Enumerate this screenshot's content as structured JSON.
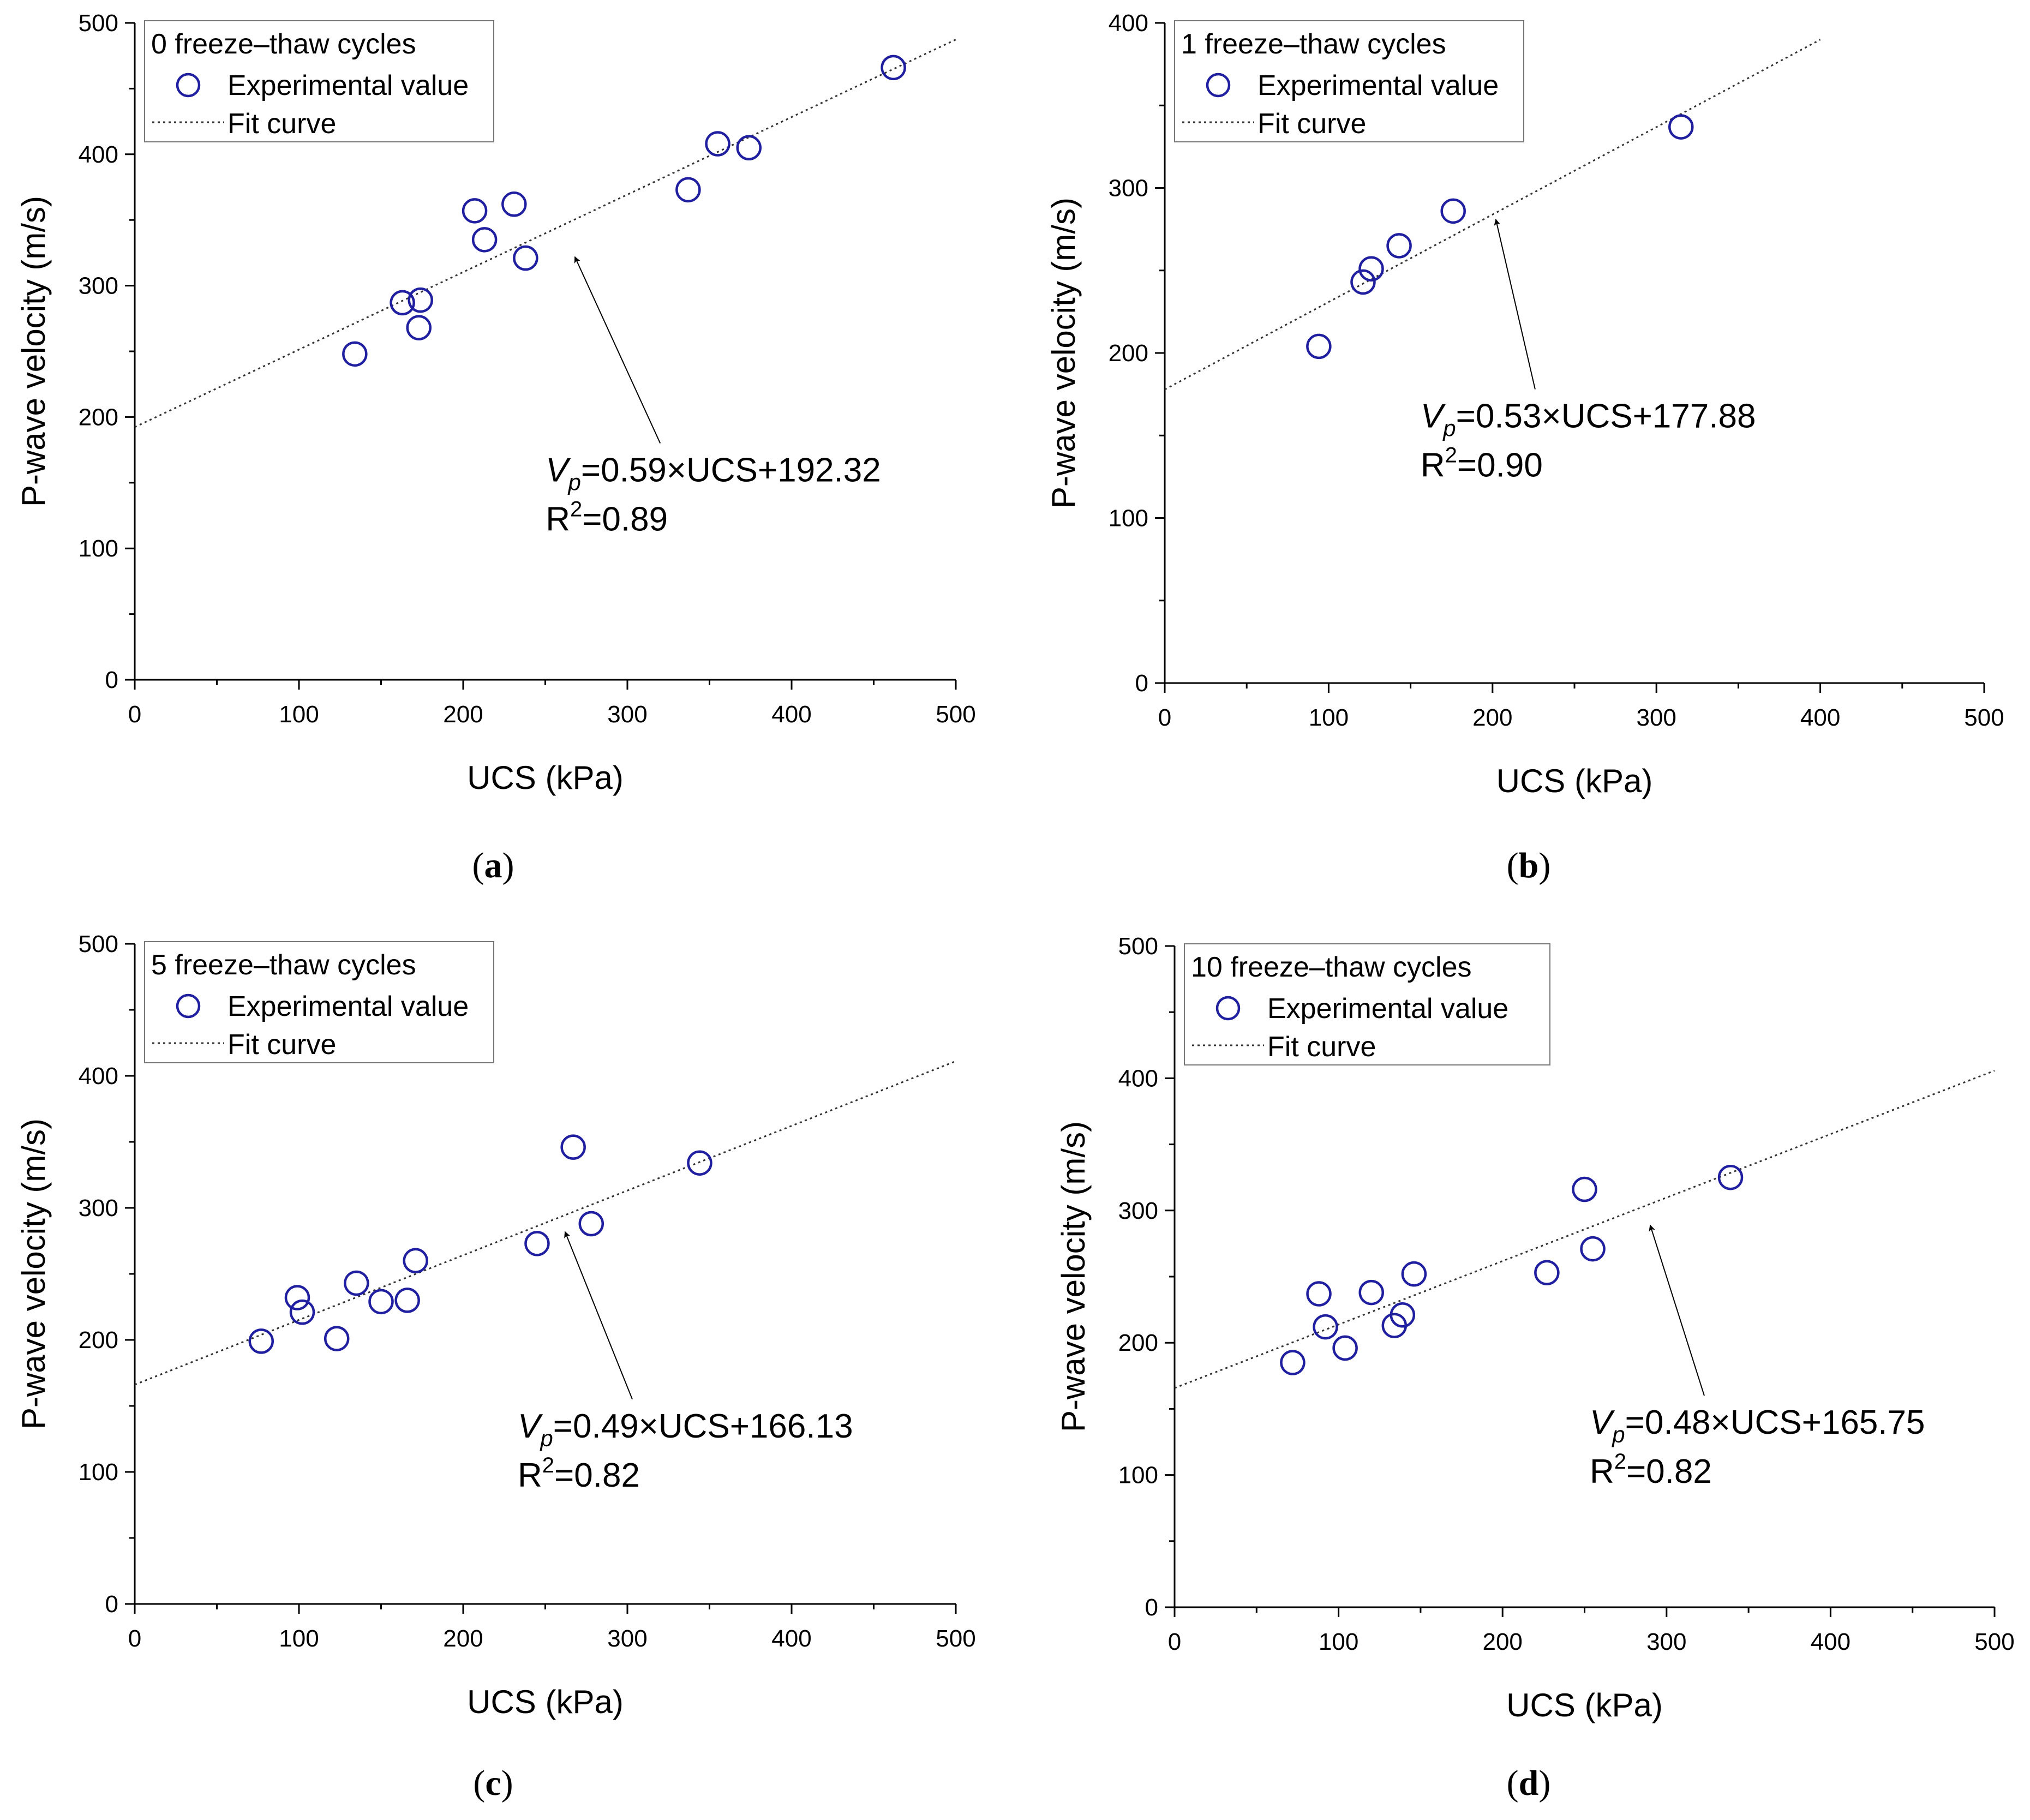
{
  "chart_data": [
    {
      "type": "scatter",
      "panel": "a",
      "legend_title": "0 freeze–thaw cycles",
      "series": [
        {
          "name": "Experimental value",
          "kind": "points",
          "points": [
            [
              134,
              248
            ],
            [
              163,
              287
            ],
            [
              173,
              268
            ],
            [
              174,
              289
            ],
            [
              207,
              357
            ],
            [
              213,
              335
            ],
            [
              231,
              362
            ],
            [
              238,
              321
            ],
            [
              337,
              373
            ],
            [
              355,
              408
            ],
            [
              374,
              405
            ],
            [
              462,
              466
            ]
          ]
        },
        {
          "name": "Fit curve",
          "kind": "line",
          "slope": 0.59,
          "intercept": 192.32,
          "x_range": [
            0,
            500
          ]
        }
      ],
      "xlabel": "UCS (kPa)",
      "ylabel": "P-wave velocity (m/s)",
      "xlim": [
        0,
        500
      ],
      "ylim": [
        0,
        500
      ],
      "xticks": [
        0,
        100,
        200,
        300,
        400,
        500
      ],
      "yticks": [
        0,
        100,
        200,
        300,
        400,
        500
      ],
      "equation": {
        "v": "V",
        "sub": "p",
        "rest": "=0.59×UCS+192.32"
      },
      "r2": {
        "r": "R",
        "sup": "2",
        "rest": "=0.89"
      },
      "arrow": {
        "from": [
          320,
          180
        ],
        "to": [
          268,
          322
        ]
      },
      "legend_position": "top-left",
      "label": {
        "open": "(",
        "letter": "a",
        "close": ")"
      }
    },
    {
      "type": "scatter",
      "panel": "b",
      "legend_title": "1 freeze–thaw cycles",
      "series": [
        {
          "name": "Experimental value",
          "kind": "points",
          "points": [
            [
              94,
              204
            ],
            [
              121,
              243
            ],
            [
              126,
              251
            ],
            [
              143,
              265
            ],
            [
              176,
              286
            ],
            [
              315,
              337
            ]
          ]
        },
        {
          "name": "Fit curve",
          "kind": "line",
          "slope": 0.53,
          "intercept": 177.88,
          "x_range": [
            0,
            400
          ]
        }
      ],
      "xlabel": "UCS (kPa)",
      "ylabel": "P-wave velocity (m/s)",
      "xlim": [
        0,
        500
      ],
      "ylim": [
        0,
        400
      ],
      "xticks": [
        0,
        100,
        200,
        300,
        400,
        500
      ],
      "yticks": [
        0,
        100,
        200,
        300,
        400
      ],
      "equation": {
        "v": "V",
        "sub": "p",
        "rest": "=0.53×UCS+177.88"
      },
      "r2": {
        "r": "R",
        "sup": "2",
        "rest": "=0.90"
      },
      "arrow": {
        "from": [
          226,
          178
        ],
        "to": [
          202,
          281
        ]
      },
      "legend_position": "top-left",
      "label": {
        "open": "(",
        "letter": "b",
        "close": ")"
      }
    },
    {
      "type": "scatter",
      "panel": "c",
      "legend_title": "5 freeze–thaw cycles",
      "series": [
        {
          "name": "Experimental value",
          "kind": "points",
          "points": [
            [
              77,
              199
            ],
            [
              99,
              232
            ],
            [
              102,
              221
            ],
            [
              123,
              201
            ],
            [
              135,
              243
            ],
            [
              150,
              229
            ],
            [
              166,
              230
            ],
            [
              171,
              260
            ],
            [
              245,
              273
            ],
            [
              267,
              346
            ],
            [
              278,
              288
            ],
            [
              344,
              334
            ]
          ]
        },
        {
          "name": "Fit curve",
          "kind": "line",
          "slope": 0.49,
          "intercept": 166.13,
          "x_range": [
            0,
            500
          ]
        }
      ],
      "xlabel": "UCS (kPa)",
      "ylabel": "P-wave velocity (m/s)",
      "xlim": [
        0,
        500
      ],
      "ylim": [
        0,
        500
      ],
      "xticks": [
        0,
        100,
        200,
        300,
        400,
        500
      ],
      "yticks": [
        0,
        100,
        200,
        300,
        400,
        500
      ],
      "equation": {
        "v": "V",
        "sub": "p",
        "rest": "=0.49×UCS+166.13"
      },
      "r2": {
        "r": "R",
        "sup": "2",
        "rest": "=0.82"
      },
      "arrow": {
        "from": [
          303,
          155
        ],
        "to": [
          262,
          282
        ]
      },
      "legend_position": "top-left",
      "label": {
        "open": "(",
        "letter": "c",
        "close": ")"
      }
    },
    {
      "type": "scatter",
      "panel": "d",
      "legend_title": "10 freeze–thaw cycles",
      "series": [
        {
          "name": "Experimental value",
          "kind": "points",
          "points": [
            [
              72,
              185
            ],
            [
              88,
              237
            ],
            [
              92,
              212
            ],
            [
              104,
              196
            ],
            [
              120,
              238
            ],
            [
              134,
              213
            ],
            [
              139,
              221
            ],
            [
              146,
              252
            ],
            [
              227,
              253
            ],
            [
              250,
              316
            ],
            [
              255,
              271
            ],
            [
              339,
              325
            ]
          ]
        },
        {
          "name": "Fit curve",
          "kind": "line",
          "slope": 0.48,
          "intercept": 165.75,
          "x_range": [
            0,
            500
          ]
        }
      ],
      "xlabel": "UCS (kPa)",
      "ylabel": "P-wave velocity (m/s)",
      "xlim": [
        0,
        500
      ],
      "ylim": [
        0,
        500
      ],
      "xticks": [
        0,
        100,
        200,
        300,
        400,
        500
      ],
      "yticks": [
        0,
        100,
        200,
        300,
        400,
        500
      ],
      "equation": {
        "v": "V",
        "sub": "p",
        "rest": "=0.48×UCS+165.75"
      },
      "r2": {
        "r": "R",
        "sup": "2",
        "rest": "=0.82"
      },
      "arrow": {
        "from": [
          323,
          160
        ],
        "to": [
          290,
          289
        ]
      },
      "legend_position": "top-left",
      "label": {
        "open": "(",
        "letter": "d",
        "close": ")"
      }
    }
  ],
  "colors": {
    "marker": "#1f1fa0",
    "line": "#333333",
    "axis": "#000000"
  }
}
